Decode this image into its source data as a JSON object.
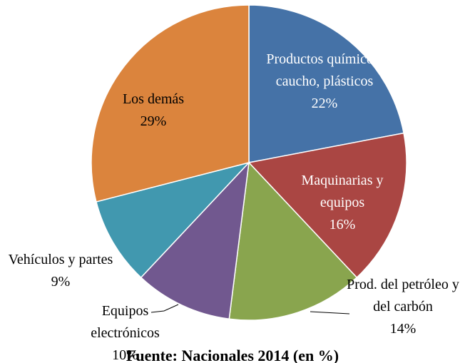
{
  "chart_data": {
    "type": "pie",
    "categories": [
      "Productos químicos, caucho, plásticos",
      "Maquinarias y equipos",
      "Prod. del petróleo y del carbón",
      "Equipos electrónicos",
      "Vehículos y partes",
      "Los demás"
    ],
    "values": [
      22,
      16,
      14,
      10,
      9,
      29
    ],
    "value_labels": [
      "22%",
      "16%",
      "14%",
      "10%",
      "9%",
      "29%"
    ],
    "colors": [
      "#4572a7",
      "#aa4643",
      "#89a54e",
      "#71588f",
      "#4198af",
      "#db843d"
    ],
    "caption": "Fuente: Nacionales 2014 (en %)"
  }
}
